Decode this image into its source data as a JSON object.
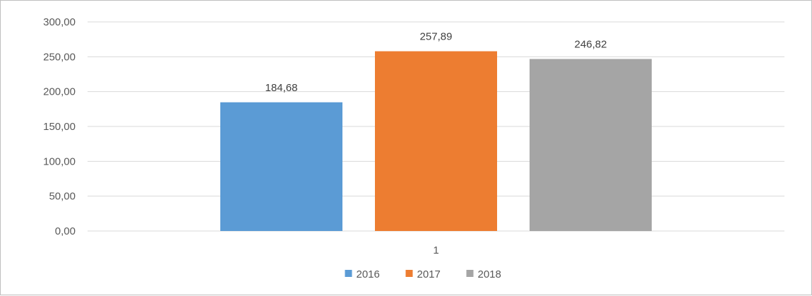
{
  "chart_data": {
    "type": "bar",
    "categories": [
      "1"
    ],
    "series": [
      {
        "name": "2016",
        "values": [
          184.68
        ],
        "label": "184,68",
        "color": "#5b9bd5"
      },
      {
        "name": "2017",
        "values": [
          257.89
        ],
        "label": "257,89",
        "color": "#ed7d31"
      },
      {
        "name": "2018",
        "values": [
          246.82
        ],
        "label": "246,82",
        "color": "#a5a5a5"
      }
    ],
    "ylim": [
      0,
      300
    ],
    "y_ticks": [
      0,
      50,
      100,
      150,
      200,
      250,
      300
    ],
    "y_tick_labels": [
      "0,00",
      "50,00",
      "100,00",
      "150,00",
      "200,00",
      "250,00",
      "300,00"
    ],
    "grid": true,
    "legend_position": "bottom",
    "gridline_color": "#d9d9d9"
  }
}
